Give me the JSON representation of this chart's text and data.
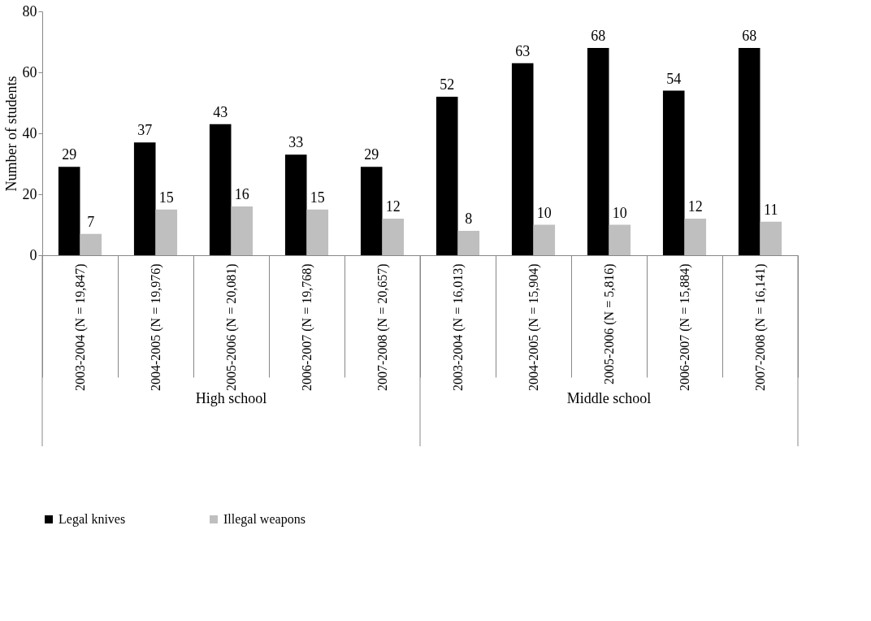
{
  "chart_data": {
    "type": "bar",
    "ylabel": "Number of students",
    "categories": [
      "2003-2004 (N = 19,847)",
      "2004-2005 (N = 19,976)",
      "2005-2006 (N = 20,081)",
      "2006-2007 (N = 19,768)",
      "2007-2008 (N = 20,657)",
      "2003-2004 (N = 16,013)",
      "2004-2005 (N = 15,904)",
      "2005-2006 (N = 5,816)",
      "2006-2007 (N = 15,884)",
      "2007-2008 (N = 16,141)"
    ],
    "series": [
      {
        "name": "Legal knives",
        "color": "#000000",
        "values": [
          29,
          37,
          43,
          33,
          29,
          52,
          63,
          68,
          54,
          68
        ]
      },
      {
        "name": "Illegal weapons",
        "color": "#bfbfbf",
        "values": [
          7,
          15,
          16,
          15,
          12,
          8,
          10,
          10,
          12,
          11
        ]
      }
    ],
    "annotations": [
      "High school",
      "Middle school"
    ],
    "ylim": [
      0,
      80
    ],
    "yticks": [
      0,
      20,
      40,
      60,
      80
    ],
    "data_labels": true,
    "grid": false,
    "legend": "bottom"
  }
}
